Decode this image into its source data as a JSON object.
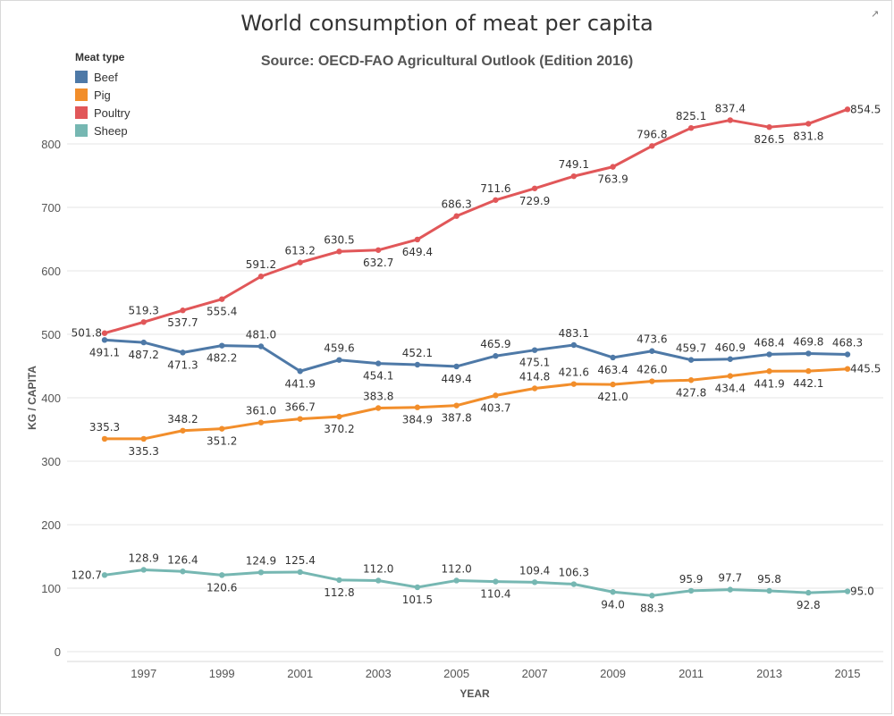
{
  "title": "World consumption of meat per capita",
  "subtitle": "Source: OECD-FAO Agricultural Outlook (Edition 2016)",
  "legend": {
    "title": "Meat type",
    "items": [
      {
        "label": "Beef",
        "color": "#4e79a7"
      },
      {
        "label": "Pig",
        "color": "#f28e2b"
      },
      {
        "label": "Poultry",
        "color": "#e15759"
      },
      {
        "label": "Sheep",
        "color": "#76b7b2"
      }
    ]
  },
  "chart_data": {
    "type": "line",
    "xlabel": "YEAR",
    "ylabel": "KG / CAPITA",
    "ylim": [
      0,
      900
    ],
    "yticks": [
      0,
      100,
      200,
      300,
      400,
      500,
      600,
      700,
      800
    ],
    "xtick_labels": [
      "1997",
      "1999",
      "2001",
      "2003",
      "2005",
      "2007",
      "2009",
      "2011",
      "2013",
      "2015"
    ],
    "x": [
      1996,
      1997,
      1998,
      1999,
      2000,
      2001,
      2002,
      2003,
      2004,
      2005,
      2006,
      2007,
      2008,
      2009,
      2010,
      2011,
      2012,
      2013,
      2014,
      2015
    ],
    "grid": true,
    "series": [
      {
        "name": "Beef",
        "color": "#4e79a7",
        "values": [
          491.1,
          487.2,
          471.3,
          482.2,
          481.0,
          441.9,
          459.6,
          454.1,
          452.1,
          449.4,
          465.9,
          475.1,
          483.1,
          463.4,
          473.6,
          459.7,
          460.9,
          468.4,
          469.8,
          468.3
        ],
        "labels": [
          "491.1",
          "487.2",
          "471.3",
          "482.2",
          "481.0",
          "441.9",
          "459.6",
          "454.1",
          "452.1",
          "449.4",
          "465.9",
          "475.1",
          "483.1",
          "463.4",
          "473.6",
          "459.7",
          "460.9",
          "468.4",
          "469.8",
          "468.3"
        ]
      },
      {
        "name": "Pig",
        "color": "#f28e2b",
        "values": [
          335.3,
          335.3,
          348.2,
          351.2,
          361.0,
          366.7,
          370.2,
          383.8,
          384.9,
          387.8,
          403.7,
          414.8,
          421.6,
          421.0,
          426.0,
          427.8,
          434.4,
          441.9,
          442.1,
          445.5
        ],
        "labels": [
          "335.3",
          "335.3",
          "348.2",
          "351.2",
          "361.0",
          "366.7",
          "370.2",
          "383.8",
          "384.9",
          "387.8",
          "403.7",
          "414.8",
          "421.6",
          "421.0",
          "426.0",
          "427.8",
          "434.4",
          "441.9",
          "442.1",
          "445.5"
        ]
      },
      {
        "name": "Poultry",
        "color": "#e15759",
        "values": [
          501.8,
          519.3,
          537.7,
          555.4,
          591.2,
          613.2,
          630.5,
          632.7,
          649.4,
          686.3,
          711.6,
          729.9,
          749.1,
          763.9,
          796.8,
          825.1,
          837.4,
          826.5,
          831.8,
          854.5
        ],
        "labels": [
          "501.8",
          "519.3",
          "537.7",
          "555.4",
          "591.2",
          "613.2",
          "630.5",
          "632.7",
          "649.4",
          "686.3",
          "711.6",
          "729.9",
          "749.1",
          "763.9",
          "796.8",
          "825.1",
          "837.4",
          "826.5",
          "831.8",
          "854.5"
        ]
      },
      {
        "name": "Sheep",
        "color": "#76b7b2",
        "values": [
          120.7,
          128.9,
          126.4,
          120.6,
          124.9,
          125.4,
          112.8,
          112.0,
          101.5,
          112.0,
          110.4,
          109.4,
          106.3,
          94.0,
          88.3,
          95.9,
          97.7,
          95.8,
          92.8,
          95.0
        ],
        "labels": [
          "120.7",
          "128.9",
          "126.4",
          "120.6",
          "124.9",
          "125.4",
          "112.8",
          "112.0",
          "101.5",
          "112.0",
          "110.4",
          "109.4",
          "106.3",
          "94.0",
          "88.3",
          "95.9",
          "97.7",
          "95.8",
          "92.8",
          "95.0"
        ]
      }
    ]
  }
}
